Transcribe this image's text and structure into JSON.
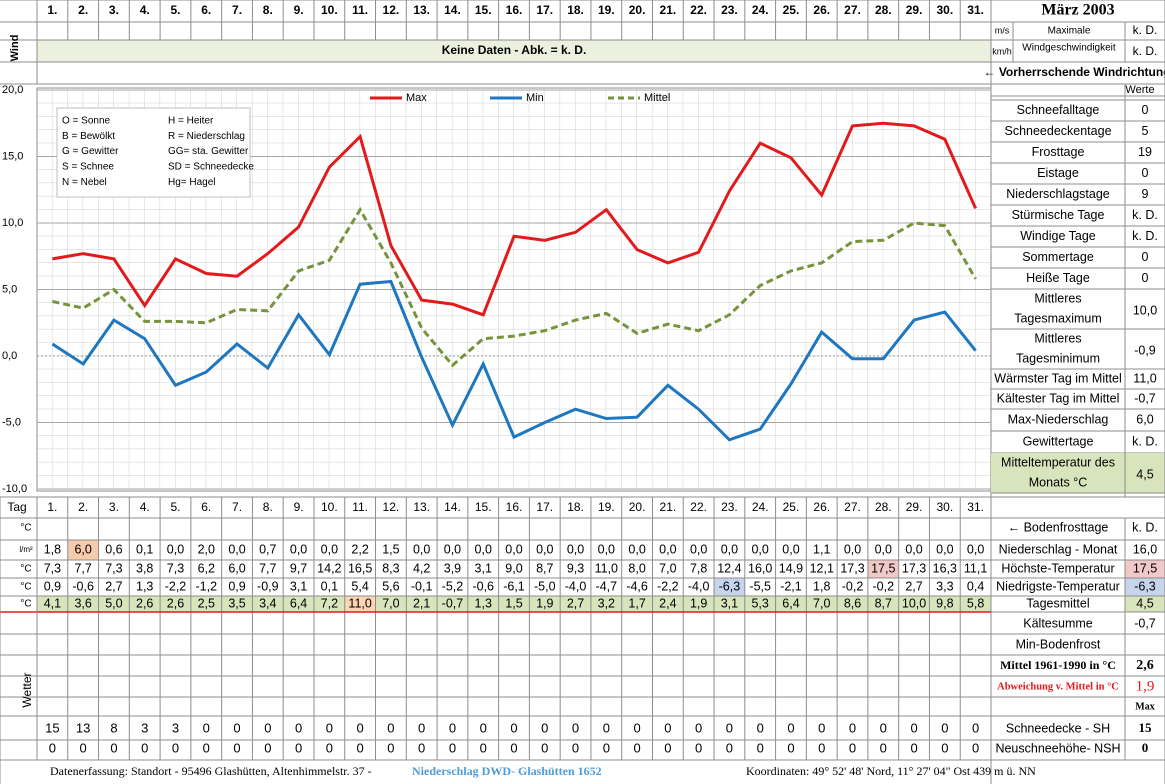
{
  "header": {
    "month": "März 2003"
  },
  "wind": {
    "label": "Wind",
    "units": [
      "m/s",
      "km/h"
    ],
    "max_label": [
      "Maximale",
      "Windgeschwindigkeit"
    ],
    "values": [
      "k. D.",
      "k. D."
    ],
    "note": "Keine Daten - Abk. = k. D.",
    "direction": "← Vorherrschende Windrichtung"
  },
  "chart_data": {
    "type": "line",
    "categories": [
      "1.",
      "2.",
      "3.",
      "4.",
      "5.",
      "6.",
      "7.",
      "8.",
      "9.",
      "10.",
      "11.",
      "12.",
      "13.",
      "14.",
      "15.",
      "16.",
      "17.",
      "18.",
      "19.",
      "20.",
      "21.",
      "22.",
      "23.",
      "24.",
      "25.",
      "26.",
      "27.",
      "28.",
      "29.",
      "30.",
      "31."
    ],
    "series": [
      {
        "name": "Max",
        "color": "#e31a1c",
        "line_style": "solid",
        "values": [
          7.3,
          7.7,
          7.3,
          3.8,
          7.3,
          6.2,
          6.0,
          7.7,
          9.7,
          14.2,
          16.5,
          8.3,
          4.2,
          3.9,
          3.1,
          9.0,
          8.7,
          9.3,
          11.0,
          8.0,
          7.0,
          7.8,
          12.4,
          16.0,
          14.9,
          12.1,
          17.3,
          17.5,
          17.3,
          16.3,
          11.1
        ]
      },
      {
        "name": "Min",
        "color": "#1f77c0",
        "line_style": "solid",
        "values": [
          0.9,
          -0.6,
          2.7,
          1.3,
          -2.2,
          -1.2,
          0.9,
          -0.9,
          3.1,
          0.1,
          5.4,
          5.6,
          -0.1,
          -5.2,
          -0.6,
          -6.1,
          -5.0,
          -4.0,
          -4.7,
          -4.6,
          -2.2,
          -4.0,
          -6.3,
          -5.5,
          -2.1,
          1.8,
          -0.2,
          -0.2,
          2.7,
          3.3,
          0.4
        ]
      },
      {
        "name": "Mittel",
        "color": "#77933c",
        "line_style": "dashed",
        "values": [
          4.1,
          3.6,
          5.0,
          2.6,
          2.6,
          2.5,
          3.5,
          3.4,
          6.4,
          7.2,
          11.0,
          7.0,
          2.1,
          -0.7,
          1.3,
          1.5,
          1.9,
          2.7,
          3.2,
          1.7,
          2.4,
          1.9,
          3.1,
          5.3,
          6.4,
          7.0,
          8.6,
          8.7,
          10.0,
          9.8,
          5.8
        ]
      }
    ],
    "ylim": [
      -10,
      20
    ],
    "yticks": [
      {
        "value": -10,
        "label": "-10,0"
      },
      {
        "value": -5,
        "label": "-5,0"
      },
      {
        "value": 0,
        "label": "0,0"
      },
      {
        "value": 5,
        "label": "5,0"
      },
      {
        "value": 10,
        "label": "10,0"
      },
      {
        "value": 15,
        "label": "15,0"
      },
      {
        "value": 20,
        "label": "20,0"
      }
    ],
    "grid": true,
    "legend": "top"
  },
  "legend_box": [
    [
      "O = Sonne",
      "H = Heiter"
    ],
    [
      "B = Bewölkt",
      "R = Niederschlag"
    ],
    [
      "G = Gewitter",
      "GG= sta. Gewitter"
    ],
    [
      "S = Schnee",
      "SD = Schneedecke"
    ],
    [
      "N = Nebel",
      "Hg= Hagel"
    ]
  ],
  "stats": {
    "header": "Werte",
    "rows": [
      {
        "label": [
          "Schneefalltage"
        ],
        "value": "0"
      },
      {
        "label": [
          "Schneedeckentage"
        ],
        "value": "5"
      },
      {
        "label": [
          "Frosttage"
        ],
        "value": "19"
      },
      {
        "label": [
          "Eistage"
        ],
        "value": "0"
      },
      {
        "label": [
          "Niederschlagstage"
        ],
        "value": "9"
      },
      {
        "label": [
          "Stürmische Tage"
        ],
        "value": "k. D."
      },
      {
        "label": [
          "Windige Tage"
        ],
        "value": "k. D."
      },
      {
        "label": [
          "Sommertage"
        ],
        "value": "0"
      },
      {
        "label": [
          "Heiße Tage"
        ],
        "value": "0"
      },
      {
        "label": [
          "Mittleres",
          "Tagesmaximum"
        ],
        "value": "10,0"
      },
      {
        "label": [
          "Mittleres",
          "Tagesminimum"
        ],
        "value": "-0,9"
      },
      {
        "label": [
          "Wärmster Tag im Mittel"
        ],
        "value": "11,0"
      },
      {
        "label": [
          "Kältester Tag im Mittel"
        ],
        "value": "-0,7"
      },
      {
        "label": [
          "Max-Niederschlag"
        ],
        "value": "6,0"
      },
      {
        "label": [
          "Gewittertage"
        ],
        "value": "k. D."
      },
      {
        "label": [
          "Mitteltemperatur des",
          "Monats °C"
        ],
        "value": "4,5",
        "color": "#d8e4bc"
      }
    ]
  },
  "table": {
    "day_label": "Tag",
    "unit": "°C",
    "bodenfrost": {
      "label": "← Bodenfrosttage",
      "value": "k. D."
    },
    "rows": [
      {
        "unit": "l/m²",
        "label": "Niederschlag - Monat",
        "total": "16,0",
        "highlight": "max",
        "color": "#f8cbad",
        "values": [
          "1,8",
          "6,0",
          "0,6",
          "0,1",
          "0,0",
          "2,0",
          "0,0",
          "0,7",
          "0,0",
          "0,0",
          "2,2",
          "1,5",
          "0,0",
          "0,0",
          "0,0",
          "0,0",
          "0,0",
          "0,0",
          "0,0",
          "0,0",
          "0,0",
          "0,0",
          "0,0",
          "0,0",
          "0,0",
          "1,1",
          "0,0",
          "0,0",
          "0,0",
          "0,0",
          "0,0"
        ]
      },
      {
        "unit": "°C",
        "label": "Höchste-Temperatur",
        "total": "17,5",
        "highlight": "max",
        "color": "#f2c9c9",
        "values": [
          "7,3",
          "7,7",
          "7,3",
          "3,8",
          "7,3",
          "6,2",
          "6,0",
          "7,7",
          "9,7",
          "14,2",
          "16,5",
          "8,3",
          "4,2",
          "3,9",
          "3,1",
          "9,0",
          "8,7",
          "9,3",
          "11,0",
          "8,0",
          "7,0",
          "7,8",
          "12,4",
          "16,0",
          "14,9",
          "12,1",
          "17,3",
          "17,5",
          "17,3",
          "16,3",
          "11,1"
        ]
      },
      {
        "unit": "°C",
        "label": "Niedrigste-Temperatur",
        "total": "-6,3",
        "highlight": "min",
        "color": "#c6d4ec",
        "values": [
          "0,9",
          "-0,6",
          "2,7",
          "1,3",
          "-2,2",
          "-1,2",
          "0,9",
          "-0,9",
          "3,1",
          "0,1",
          "5,4",
          "5,6",
          "-0,1",
          "-5,2",
          "-0,6",
          "-6,1",
          "-5,0",
          "-4,0",
          "-4,7",
          "-4,6",
          "-2,2",
          "-4,0",
          "-6,3",
          "-5,5",
          "-2,1",
          "1,8",
          "-0,2",
          "-0,2",
          "2,7",
          "3,3",
          "0,4"
        ]
      },
      {
        "unit": "°C",
        "label": "Tagesmittel",
        "total": "4,5",
        "highlight": "max",
        "color": "#fcd5b4",
        "row_color": "#d8e4bc",
        "values": [
          "4,1",
          "3,6",
          "5,0",
          "2,6",
          "2,6",
          "2,5",
          "3,5",
          "3,4",
          "6,4",
          "7,2",
          "11,0",
          "7,0",
          "2,1",
          "-0,7",
          "1,3",
          "1,5",
          "1,9",
          "2,7",
          "3,2",
          "1,7",
          "2,4",
          "1,9",
          "3,1",
          "5,3",
          "6,4",
          "7,0",
          "8,6",
          "8,7",
          "10,0",
          "9,8",
          "5,8"
        ]
      }
    ],
    "kaeltesumme": {
      "label": "Kältesumme",
      "value": "-0,7"
    },
    "min_bodenfrost": {
      "label": "Min-Bodenfrost"
    },
    "mittel": {
      "label": "Mittel 1961-1990 in °C",
      "value": "2,6"
    },
    "abweichung": {
      "label": "Abweichung v. Mittel in °C",
      "value": "1,9"
    },
    "weather_label": "Wetter",
    "max_label": "Max",
    "snow": [
      {
        "label": "Schneedecke -  SH",
        "value": 15,
        "values": [
          15,
          13,
          8,
          3,
          3,
          0,
          0,
          0,
          0,
          0,
          0,
          0,
          0,
          0,
          0,
          0,
          0,
          0,
          0,
          0,
          0,
          0,
          0,
          0,
          0,
          0,
          0,
          0,
          0,
          0,
          0
        ]
      },
      {
        "label": "Neuschneehöhe- NSH",
        "value": 0,
        "values": [
          0,
          0,
          0,
          0,
          0,
          0,
          0,
          0,
          0,
          0,
          0,
          0,
          0,
          0,
          0,
          0,
          0,
          0,
          0,
          0,
          0,
          0,
          0,
          0,
          0,
          0,
          0,
          0,
          0,
          0,
          0
        ]
      }
    ]
  },
  "footer": {
    "left": "Datenerfassung:  Standort -  95496  Glashütten, Altenhimmelstr. 37 -",
    "link": "Niederschlag DWD- Glashütten 1652",
    "right": "Koordinaten:  49° 52' 48' Nord,   11° 27' 04\" Ost   439 m ü. NN"
  }
}
